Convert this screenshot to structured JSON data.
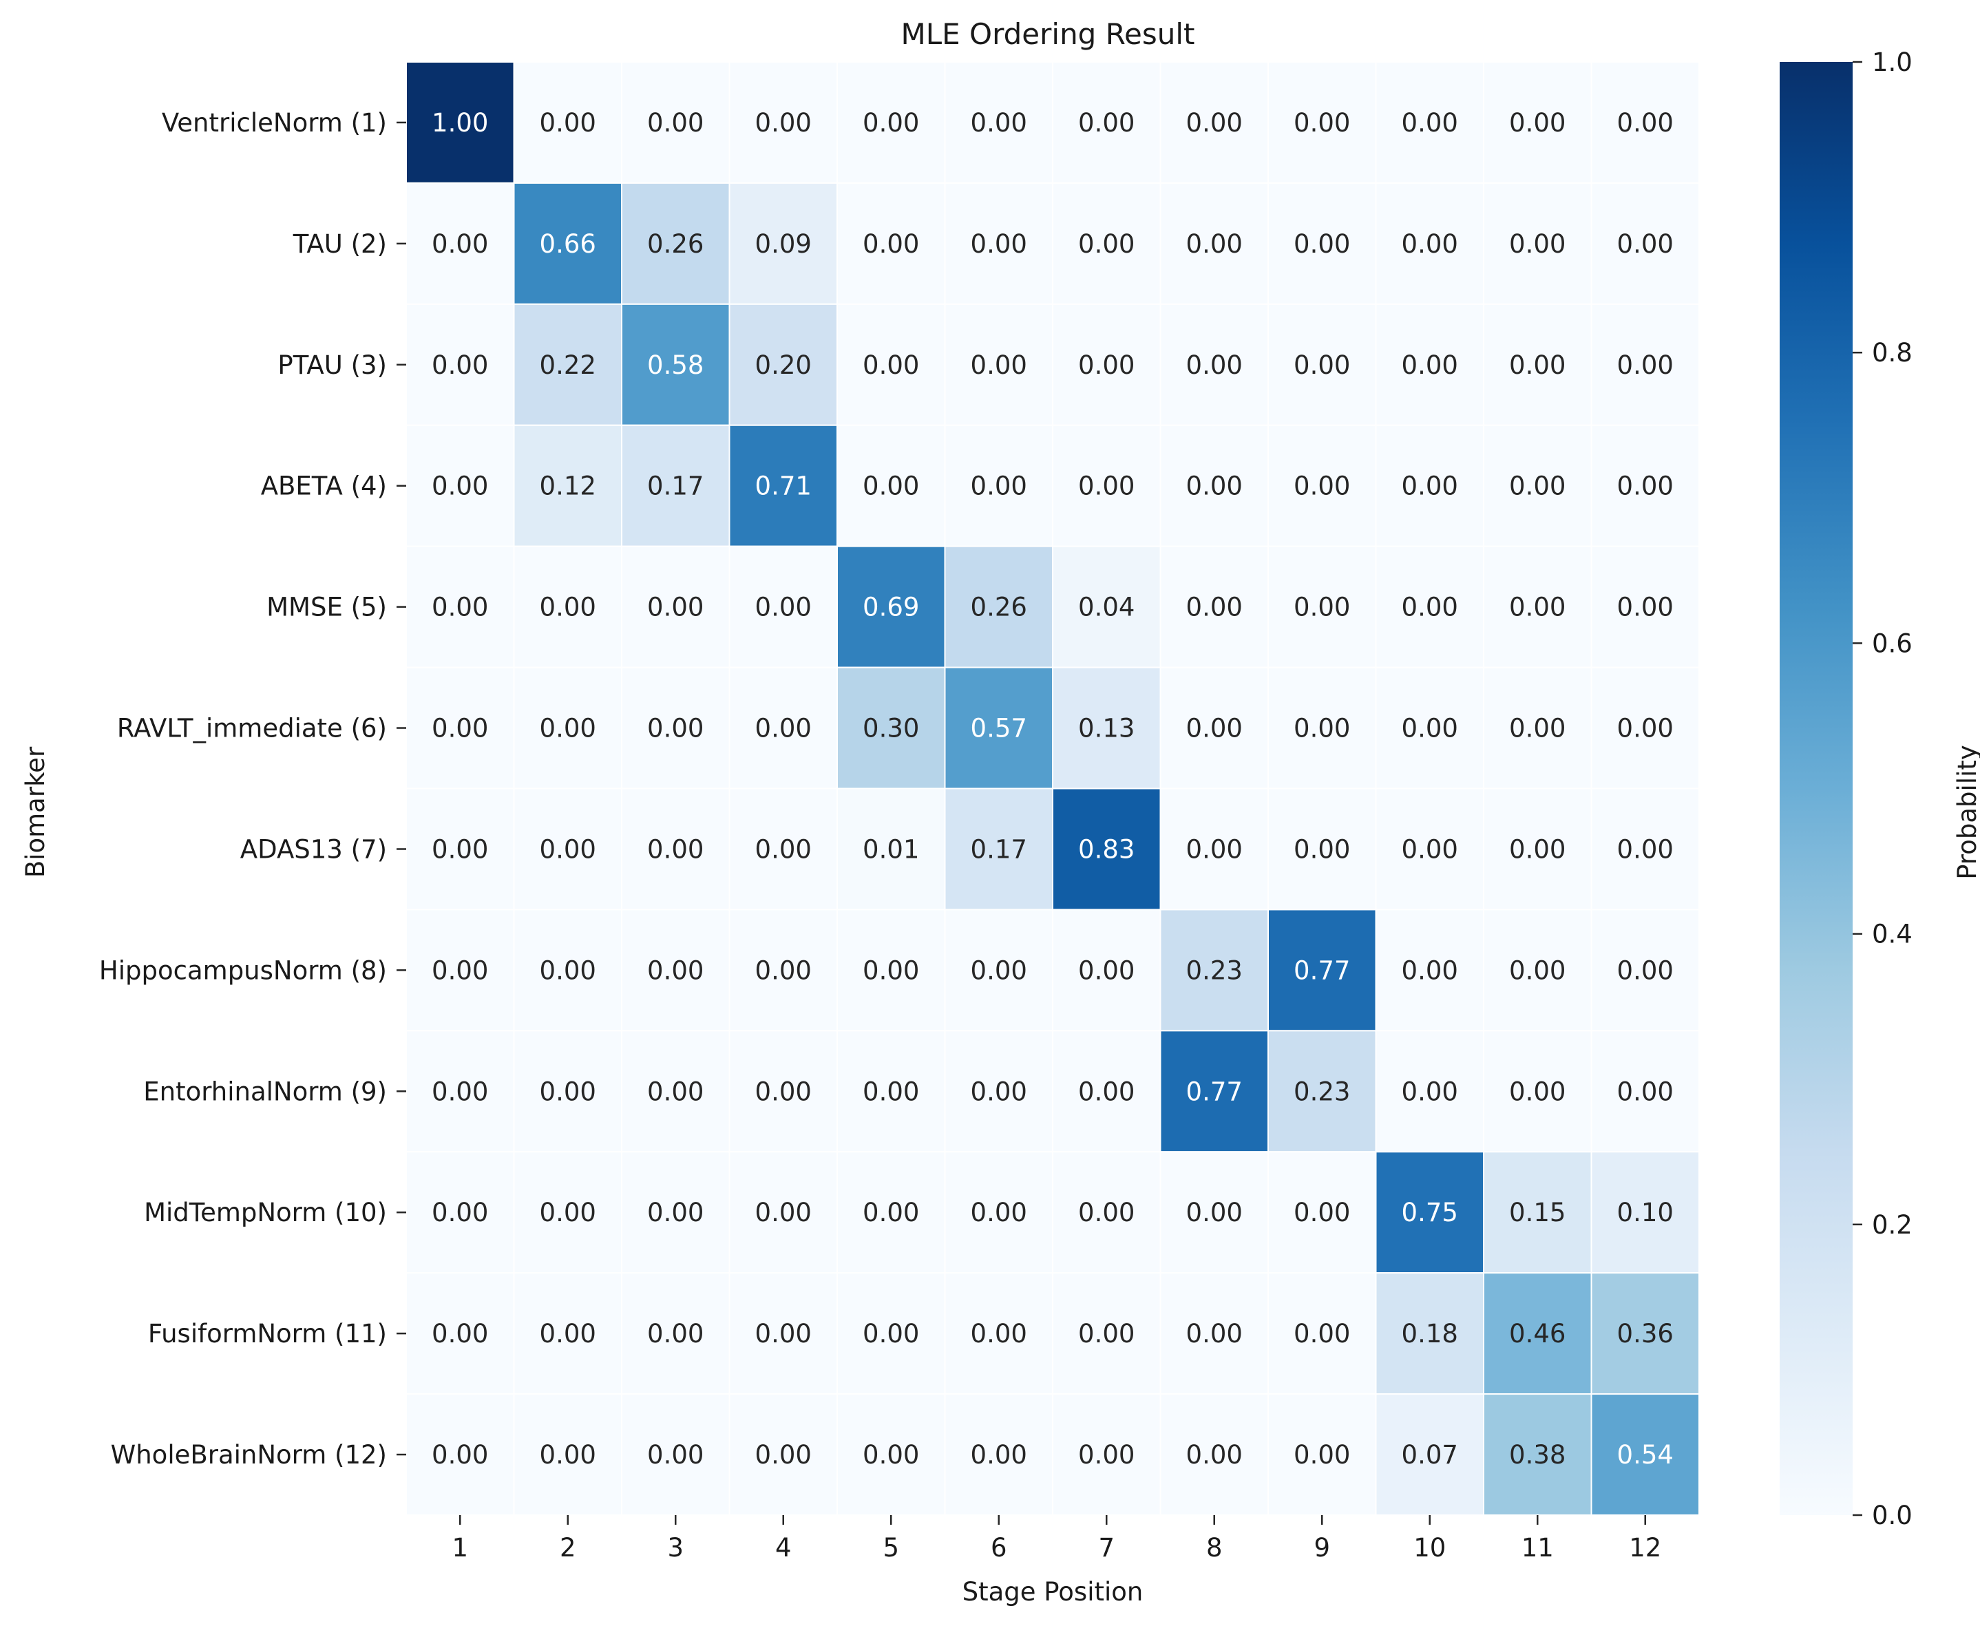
{
  "chart_data": {
    "type": "heatmap",
    "title": "MLE Ordering Result",
    "xlabel": "Stage Position",
    "ylabel": "Biomarker",
    "x_categories": [
      "1",
      "2",
      "3",
      "4",
      "5",
      "6",
      "7",
      "8",
      "9",
      "10",
      "11",
      "12"
    ],
    "y_categories": [
      "VentricleNorm (1)",
      "TAU (2)",
      "PTAU (3)",
      "ABETA (4)",
      "MMSE (5)",
      "RAVLT_immediate (6)",
      "ADAS13 (7)",
      "HippocampusNorm (8)",
      "EntorhinalNorm (9)",
      "MidTempNorm (10)",
      "FusiformNorm (11)",
      "WholeBrainNorm (12)"
    ],
    "values": [
      [
        1.0,
        0.0,
        0.0,
        0.0,
        0.0,
        0.0,
        0.0,
        0.0,
        0.0,
        0.0,
        0.0,
        0.0
      ],
      [
        0.0,
        0.66,
        0.26,
        0.09,
        0.0,
        0.0,
        0.0,
        0.0,
        0.0,
        0.0,
        0.0,
        0.0
      ],
      [
        0.0,
        0.22,
        0.58,
        0.2,
        0.0,
        0.0,
        0.0,
        0.0,
        0.0,
        0.0,
        0.0,
        0.0
      ],
      [
        0.0,
        0.12,
        0.17,
        0.71,
        0.0,
        0.0,
        0.0,
        0.0,
        0.0,
        0.0,
        0.0,
        0.0
      ],
      [
        0.0,
        0.0,
        0.0,
        0.0,
        0.69,
        0.26,
        0.04,
        0.0,
        0.0,
        0.0,
        0.0,
        0.0
      ],
      [
        0.0,
        0.0,
        0.0,
        0.0,
        0.3,
        0.57,
        0.13,
        0.0,
        0.0,
        0.0,
        0.0,
        0.0
      ],
      [
        0.0,
        0.0,
        0.0,
        0.0,
        0.01,
        0.17,
        0.83,
        0.0,
        0.0,
        0.0,
        0.0,
        0.0
      ],
      [
        0.0,
        0.0,
        0.0,
        0.0,
        0.0,
        0.0,
        0.0,
        0.23,
        0.77,
        0.0,
        0.0,
        0.0
      ],
      [
        0.0,
        0.0,
        0.0,
        0.0,
        0.0,
        0.0,
        0.0,
        0.77,
        0.23,
        0.0,
        0.0,
        0.0
      ],
      [
        0.0,
        0.0,
        0.0,
        0.0,
        0.0,
        0.0,
        0.0,
        0.0,
        0.0,
        0.75,
        0.15,
        0.1
      ],
      [
        0.0,
        0.0,
        0.0,
        0.0,
        0.0,
        0.0,
        0.0,
        0.0,
        0.0,
        0.18,
        0.46,
        0.36
      ],
      [
        0.0,
        0.0,
        0.0,
        0.0,
        0.0,
        0.0,
        0.0,
        0.0,
        0.0,
        0.07,
        0.38,
        0.54
      ]
    ],
    "colormap": "Blues",
    "vmin": 0.0,
    "vmax": 1.0,
    "colorbar": {
      "label": "Probability",
      "ticks": [
        "0.0",
        "0.2",
        "0.4",
        "0.6",
        "0.8",
        "1.0"
      ]
    },
    "grid_line_color": "#ffffff"
  }
}
